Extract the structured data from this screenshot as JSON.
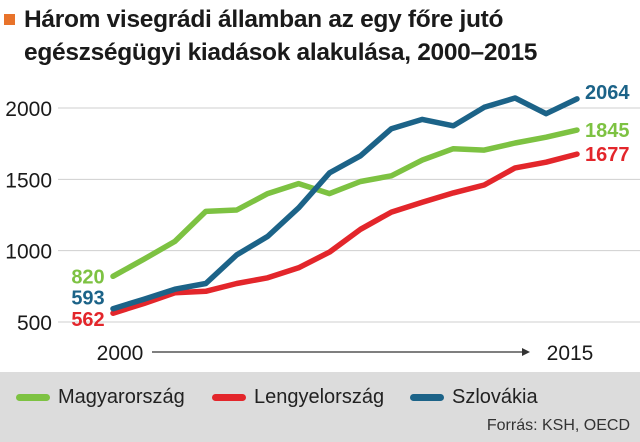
{
  "title": {
    "line1": "Három visegrádi államban az egy főre jutó",
    "line2": "egészségügyi kiadások alakulása, 2000–2015"
  },
  "source": "Forrás: KSH, OECD",
  "chart_data": {
    "type": "line",
    "x": [
      2000,
      2001,
      2002,
      2003,
      2004,
      2005,
      2006,
      2007,
      2008,
      2009,
      2010,
      2011,
      2012,
      2013,
      2014,
      2015
    ],
    "xticks": [
      "2000",
      "2015"
    ],
    "yticks": [
      "500",
      "1000",
      "1500",
      "2000"
    ],
    "ylim": [
      500,
      2150
    ],
    "grid": true,
    "legend": "bottom",
    "series": [
      {
        "name": "Magyarország",
        "color": "#7dc242",
        "values": [
          820,
          940,
          1065,
          1275,
          1285,
          1400,
          1470,
          1400,
          1485,
          1525,
          1635,
          1715,
          1705,
          1755,
          1795,
          1845
        ],
        "start_label": "820",
        "end_label": "1845"
      },
      {
        "name": "Lengyelország",
        "color": "#e3262b",
        "values": [
          562,
          630,
          705,
          715,
          770,
          810,
          880,
          990,
          1150,
          1270,
          1340,
          1405,
          1460,
          1580,
          1620,
          1677
        ],
        "start_label": "562",
        "end_label": "1677"
      },
      {
        "name": "Szlovákia",
        "color": "#1c6388",
        "values": [
          593,
          660,
          730,
          770,
          970,
          1100,
          1300,
          1545,
          1665,
          1855,
          1920,
          1875,
          2005,
          2070,
          1960,
          2064
        ],
        "start_label": "593",
        "end_label": "2064"
      }
    ]
  }
}
